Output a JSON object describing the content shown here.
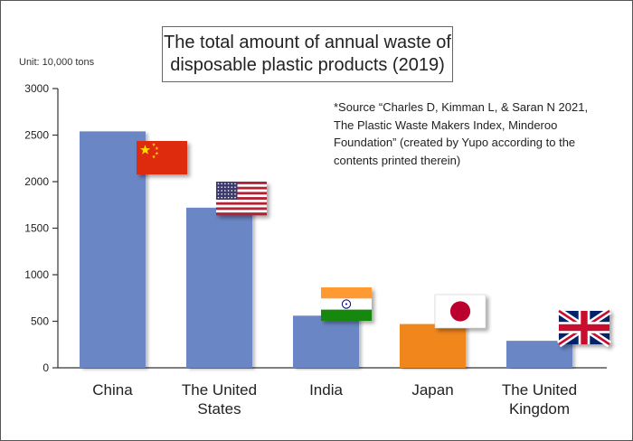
{
  "title_lines": [
    "The total amount of annual waste of",
    "disposable plastic products (2019)"
  ],
  "unit_label": "Unit: 10,000 tons",
  "source_lines": [
    "*Source “Charles D, Kimman L, & Saran N 2021,",
    "The Plastic Waste Makers Index, Minderoo",
    "Foundation” (created by Yupo according to the",
    "contents printed therein)"
  ],
  "chart_data": {
    "type": "bar",
    "title": "The total amount of annual waste of disposable plastic products (2019)",
    "ylabel": "Unit: 10,000 tons",
    "xlabel": "",
    "ylim": [
      0,
      3000
    ],
    "yticks": [
      0,
      500,
      1000,
      1500,
      2000,
      2500,
      3000
    ],
    "grid": false,
    "legend": "none",
    "categories": [
      [
        "China"
      ],
      [
        "The United",
        "States"
      ],
      [
        "India"
      ],
      [
        "Japan"
      ],
      [
        "The United",
        "Kingdom"
      ]
    ],
    "values": [
      2540,
      1720,
      560,
      470,
      290
    ],
    "bar_colors": [
      "#6b86c5",
      "#6b86c5",
      "#6b86c5",
      "#f0861e",
      "#6b86c5"
    ],
    "flags": [
      "china-flag",
      "usa-flag",
      "india-flag",
      "japan-flag",
      "uk-flag"
    ]
  },
  "colors": {
    "bar": "#6b86c5",
    "highlight_bar": "#f0861e",
    "axis": "#333333"
  }
}
